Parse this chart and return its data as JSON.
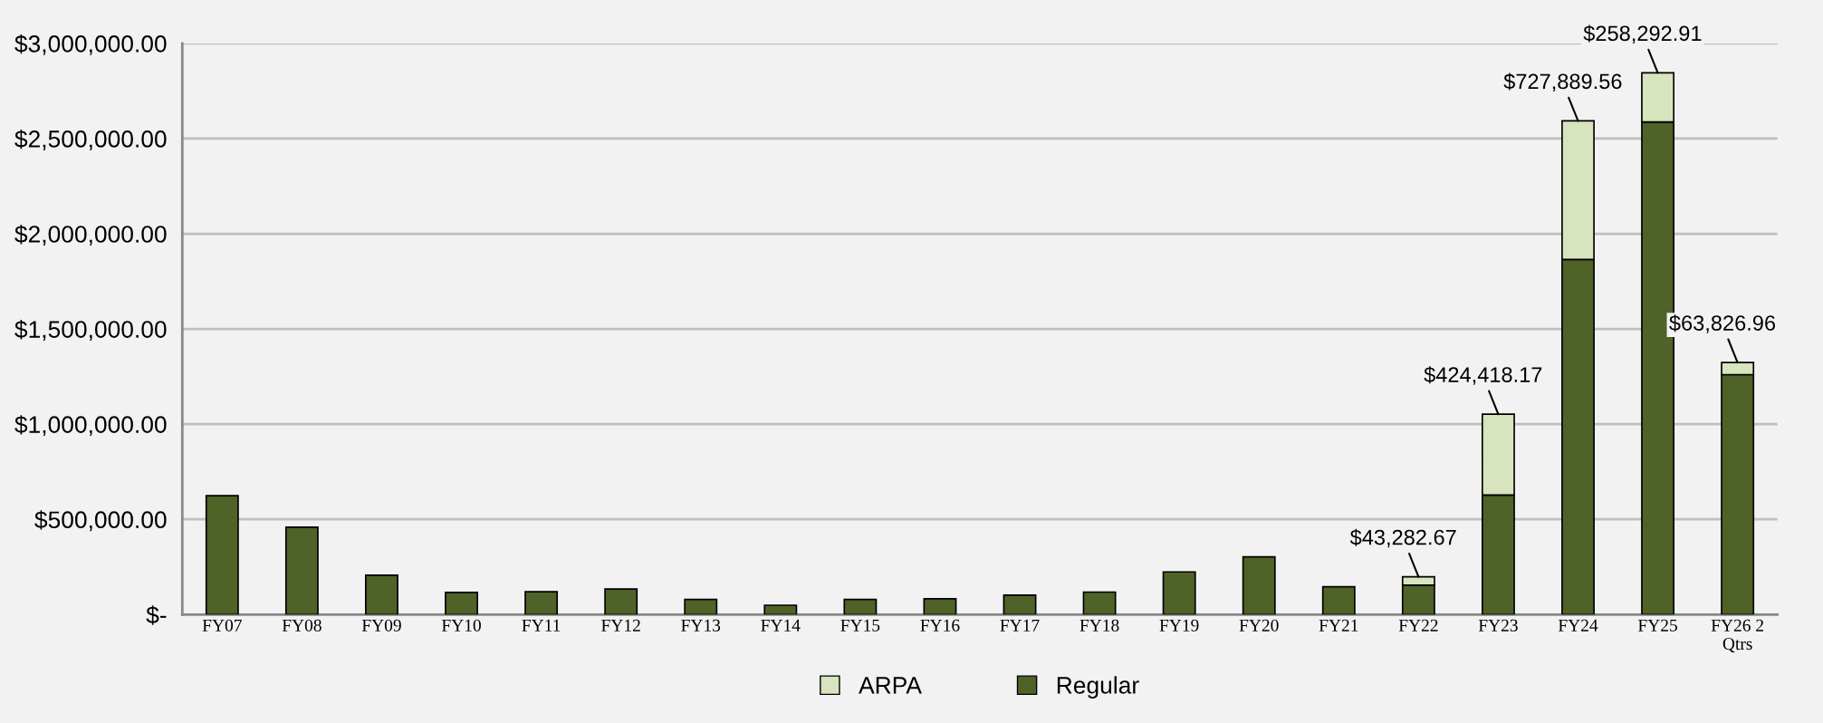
{
  "chart_data": {
    "type": "bar",
    "stacked": true,
    "categories": [
      "FY07",
      "FY08",
      "FY09",
      "FY10",
      "FY11",
      "FY12",
      "FY13",
      "FY14",
      "FY15",
      "FY16",
      "FY17",
      "FY18",
      "FY19",
      "FY20",
      "FY21",
      "FY22",
      "FY23",
      "FY24",
      "FY25",
      "FY26 2\nQtrs"
    ],
    "series": [
      {
        "name": "Regular",
        "color": "#4f6228",
        "values": [
          624000,
          459000,
          207000,
          116000,
          120000,
          134000,
          79000,
          49000,
          79000,
          83000,
          102000,
          118000,
          224000,
          303000,
          146000,
          155000,
          628000,
          1865000,
          2587000,
          1260000
        ]
      },
      {
        "name": "ARPA",
        "color": "#d7e4bd",
        "values": [
          null,
          null,
          null,
          null,
          null,
          null,
          null,
          null,
          null,
          null,
          null,
          null,
          null,
          null,
          null,
          43282.67,
          424418.17,
          727889.56,
          258292.91,
          63826.96
        ],
        "value_labels": [
          null,
          null,
          null,
          null,
          null,
          null,
          null,
          null,
          null,
          null,
          null,
          null,
          null,
          null,
          null,
          "$43,282.67",
          "$424,418.17",
          "$727,889.56",
          "$258,292.91",
          "$63,826.96"
        ]
      }
    ],
    "ylim": [
      0,
      3000000
    ],
    "yticks": [
      {
        "value": 0,
        "label": "$-"
      },
      {
        "value": 500000,
        "label": "$500,000.00"
      },
      {
        "value": 1000000,
        "label": "$1,000,000.00"
      },
      {
        "value": 1500000,
        "label": "$1,500,000.00"
      },
      {
        "value": 2000000,
        "label": "$2,000,000.00"
      },
      {
        "value": 2500000,
        "label": "$2,500,000.00"
      },
      {
        "value": 3000000,
        "label": "$3,000,000.00"
      }
    ],
    "grid": "y",
    "legend": "bottom"
  }
}
